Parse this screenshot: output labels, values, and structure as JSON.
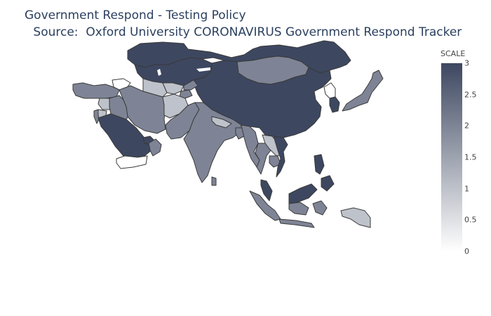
{
  "title": {
    "line1": "Government Respond - Testing Policy",
    "line2": " Source:  Oxford University CORONAVIRUS Government Respond Tracker"
  },
  "colorbar": {
    "title": "SCALE",
    "min": 0,
    "max": 3,
    "ticks": [
      "0",
      "0.5",
      "1",
      "1.5",
      "2",
      "2.5",
      "3"
    ],
    "color_low": "#ffffff",
    "color_high": "#3d4760"
  },
  "map": {
    "projection": "equirectangular (Asia extent)",
    "background": "#ffffff",
    "border_color": "#3a3a3a"
  },
  "chart_data": {
    "type": "choropleth",
    "title": "Government Respond - Testing Policy",
    "subtitle": " Source:  Oxford University CORONAVIRUS Government Respond Tracker",
    "colorbar_title": "SCALE",
    "range": [
      0,
      3
    ],
    "regions": [
      {
        "id": "russia-east",
        "value": 3
      },
      {
        "id": "kazakhstan",
        "value": 3
      },
      {
        "id": "china",
        "value": 3
      },
      {
        "id": "mongolia",
        "value": 2
      },
      {
        "id": "saudi-arabia",
        "value": 3
      },
      {
        "id": "yemen",
        "value": 0
      },
      {
        "id": "oman",
        "value": 2
      },
      {
        "id": "uae",
        "value": 3
      },
      {
        "id": "iran",
        "value": 2
      },
      {
        "id": "iraq",
        "value": 2
      },
      {
        "id": "syria",
        "value": 1
      },
      {
        "id": "turkey",
        "value": 2
      },
      {
        "id": "afghanistan",
        "value": 1
      },
      {
        "id": "pakistan",
        "value": 2
      },
      {
        "id": "india",
        "value": 2
      },
      {
        "id": "uzbekistan",
        "value": 1
      },
      {
        "id": "turkmenistan",
        "value": 1
      },
      {
        "id": "kyrgyzstan",
        "value": 2
      },
      {
        "id": "tajikistan",
        "value": 2
      },
      {
        "id": "myanmar",
        "value": 2
      },
      {
        "id": "thailand",
        "value": 2
      },
      {
        "id": "laos",
        "value": 1
      },
      {
        "id": "vietnam",
        "value": 3
      },
      {
        "id": "cambodia",
        "value": 2
      },
      {
        "id": "malaysia",
        "value": 3
      },
      {
        "id": "philippines",
        "value": 3
      },
      {
        "id": "indonesia",
        "value": 2
      },
      {
        "id": "papua",
        "value": 1
      },
      {
        "id": "japan",
        "value": 2
      },
      {
        "id": "south-korea",
        "value": 3
      },
      {
        "id": "north-korea",
        "value": 0
      },
      {
        "id": "nepal",
        "value": 1
      },
      {
        "id": "bangladesh",
        "value": 2
      },
      {
        "id": "sri-lanka",
        "value": 2
      },
      {
        "id": "georgia-armenia",
        "value": 0
      },
      {
        "id": "israel",
        "value": 2
      },
      {
        "id": "jordan",
        "value": 1
      }
    ]
  }
}
